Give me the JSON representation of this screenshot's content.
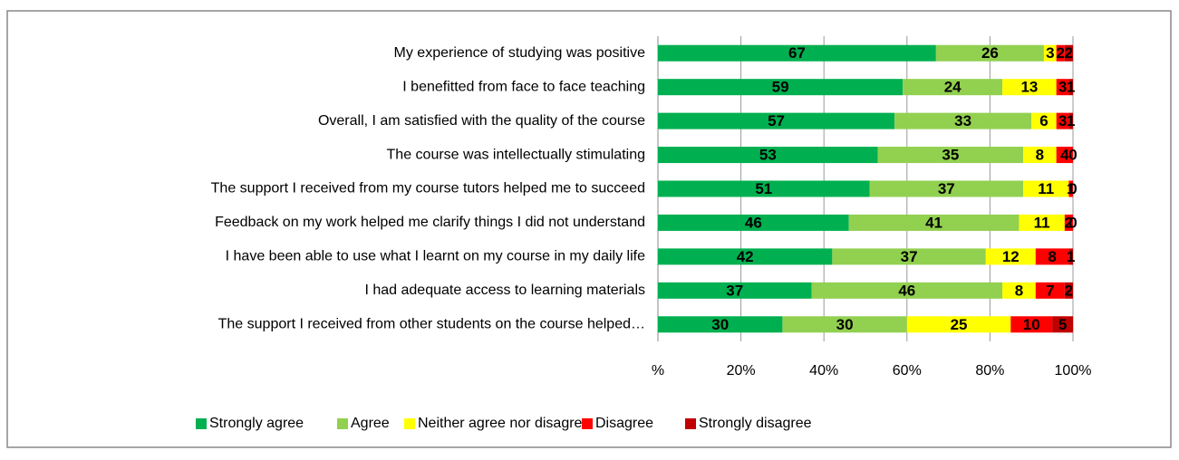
{
  "chart_data": {
    "type": "stacked-bar-horizontal",
    "categories": [
      "My experience of studying was positive",
      "I benefitted from face to face teaching",
      "Overall, I am satisfied with the quality of the course",
      "The course was intellectually stimulating",
      "The support I received from my course tutors helped me to succeed",
      "Feedback on my work helped me clarify things I did not understand",
      "I have been able to use what I learnt on my course in my daily life",
      "I had adequate access to learning materials",
      "The support I received from other students on the course helped…"
    ],
    "series": [
      {
        "name": "Strongly agree",
        "color": "#00b050",
        "values": [
          67,
          59,
          57,
          53,
          51,
          46,
          42,
          37,
          30
        ]
      },
      {
        "name": "Agree",
        "color": "#92d050",
        "values": [
          26,
          24,
          33,
          35,
          37,
          41,
          37,
          46,
          30
        ]
      },
      {
        "name": "Neither agree nor disagree",
        "color": "#ffff00",
        "values": [
          3,
          13,
          6,
          8,
          11,
          11,
          12,
          8,
          25
        ]
      },
      {
        "name": "Disagree",
        "color": "#ff0000",
        "values": [
          2,
          3,
          3,
          4,
          1,
          2,
          8,
          7,
          10
        ]
      },
      {
        "name": "Strongly disagree",
        "color": "#c00000",
        "values": [
          2,
          1,
          1,
          0,
          0,
          0,
          1,
          2,
          5
        ]
      }
    ],
    "xlim": [
      0,
      100
    ],
    "xticks": [
      {
        "value": 0,
        "label": "%"
      },
      {
        "value": 20,
        "label": "20%"
      },
      {
        "value": 40,
        "label": "40%"
      },
      {
        "value": 60,
        "label": "60%"
      },
      {
        "value": 80,
        "label": "80%"
      },
      {
        "value": 100,
        "label": "100%"
      }
    ],
    "grid": true,
    "legend": "bottom"
  }
}
